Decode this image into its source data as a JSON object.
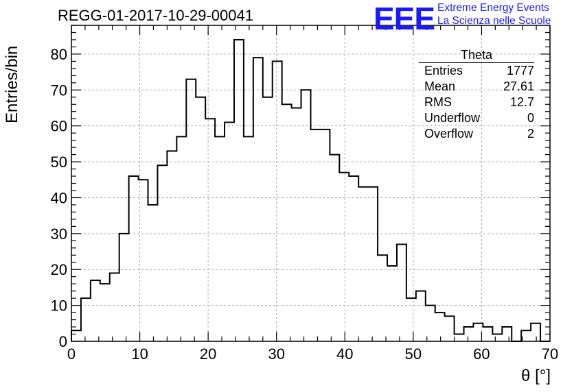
{
  "header": {
    "run_title": "REGG-01-2017-10-29-00041",
    "logo": "EEE",
    "logo_line1": "Extreme Energy Events",
    "logo_line2": "La Scienza nelle Scuole",
    "logo_color": "#1a1aff"
  },
  "stats_box": {
    "title": "Theta",
    "rows": [
      {
        "label": "Entries",
        "value": "1777"
      },
      {
        "label": "Mean",
        "value": "27.61"
      },
      {
        "label": "RMS",
        "value": "12.7"
      },
      {
        "label": "Underflow",
        "value": "0"
      },
      {
        "label": "Overflow",
        "value": "2"
      }
    ]
  },
  "chart_data": {
    "type": "bar",
    "histogram": true,
    "xlabel": "θ [°]",
    "ylabel": "Entries/bin",
    "xlim": [
      0,
      70
    ],
    "ylim": [
      0,
      88
    ],
    "xticks": [
      0,
      10,
      20,
      30,
      40,
      50,
      60,
      70
    ],
    "yticks": [
      0,
      10,
      20,
      30,
      40,
      50,
      60,
      70,
      80
    ],
    "grid": true,
    "bin_width": 1.4,
    "bin_edges_start": 0,
    "values": [
      3,
      12,
      17,
      16,
      19,
      30,
      46,
      45,
      38,
      49,
      53,
      57,
      73,
      68,
      62,
      57,
      61,
      84,
      57,
      79,
      68,
      78,
      66,
      65,
      70,
      59,
      59,
      52,
      47,
      46,
      43,
      43,
      24,
      21,
      27,
      12,
      14,
      10,
      8,
      7,
      2,
      4,
      5,
      4,
      2,
      4,
      0,
      3,
      5,
      0
    ],
    "line_color": "#000000"
  }
}
